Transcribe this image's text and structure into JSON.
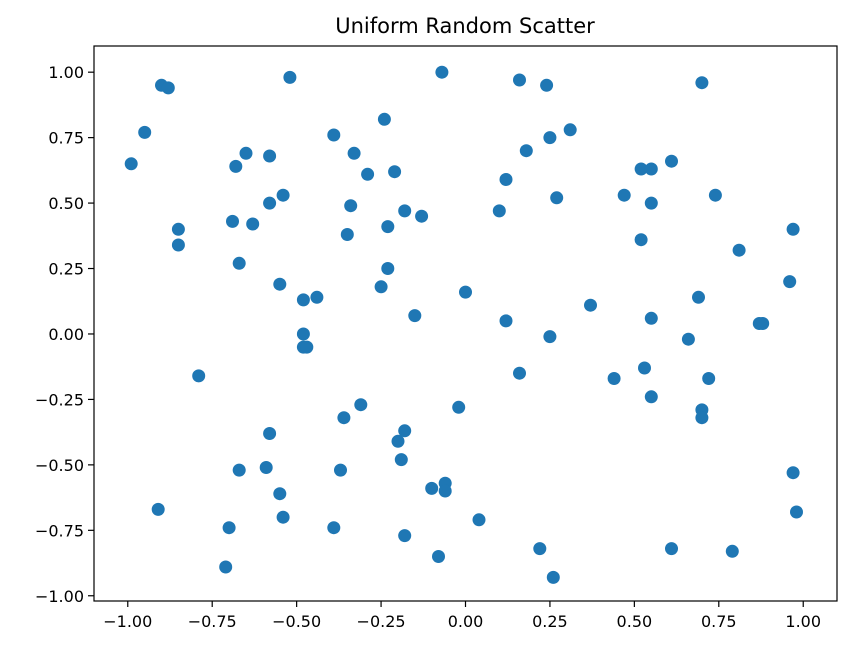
{
  "chart_data": {
    "type": "scatter",
    "title": "Uniform Random Scatter",
    "xlabel": "",
    "ylabel": "",
    "xlim": [
      -1.1,
      1.1
    ],
    "ylim": [
      -1.02,
      1.1
    ],
    "grid": false,
    "marker_color": "#1f77b4",
    "xticks": [
      -1.0,
      -0.75,
      -0.5,
      -0.25,
      0.0,
      0.25,
      0.5,
      0.75,
      1.0
    ],
    "xtick_labels": [
      "−1.00",
      "−0.75",
      "−0.50",
      "−0.25",
      "0.00",
      "0.25",
      "0.50",
      "0.75",
      "1.00"
    ],
    "yticks": [
      1.0,
      0.75,
      0.5,
      0.25,
      0.0,
      -0.25,
      -0.5,
      -0.75,
      -1.0
    ],
    "ytick_labels": [
      "1.00",
      "0.75",
      "0.50",
      "0.25",
      "0.00",
      "−0.25",
      "−0.50",
      "−0.75",
      "−1.00"
    ],
    "points": [
      [
        -0.99,
        0.65
      ],
      [
        -0.95,
        0.77
      ],
      [
        -0.9,
        0.95
      ],
      [
        -0.88,
        0.94
      ],
      [
        -0.85,
        0.4
      ],
      [
        -0.85,
        0.34
      ],
      [
        -0.91,
        -0.67
      ],
      [
        -0.79,
        -0.16
      ],
      [
        -0.71,
        -0.89
      ],
      [
        -0.7,
        -0.74
      ],
      [
        -0.69,
        0.43
      ],
      [
        -0.68,
        0.64
      ],
      [
        -0.67,
        0.27
      ],
      [
        -0.67,
        -0.52
      ],
      [
        -0.65,
        0.69
      ],
      [
        -0.63,
        0.42
      ],
      [
        -0.59,
        -0.51
      ],
      [
        -0.58,
        0.68
      ],
      [
        -0.58,
        0.5
      ],
      [
        -0.58,
        -0.38
      ],
      [
        -0.55,
        0.19
      ],
      [
        -0.55,
        -0.61
      ],
      [
        -0.54,
        0.53
      ],
      [
        -0.54,
        -0.7
      ],
      [
        -0.52,
        0.98
      ],
      [
        -0.48,
        0.13
      ],
      [
        -0.48,
        -0.0
      ],
      [
        -0.48,
        -0.05
      ],
      [
        -0.47,
        -0.05
      ],
      [
        -0.44,
        0.14
      ],
      [
        -0.39,
        0.76
      ],
      [
        -0.39,
        -0.74
      ],
      [
        -0.37,
        -0.52
      ],
      [
        -0.36,
        -0.32
      ],
      [
        -0.35,
        0.38
      ],
      [
        -0.34,
        0.49
      ],
      [
        -0.33,
        0.69
      ],
      [
        -0.31,
        -0.27
      ],
      [
        -0.29,
        0.61
      ],
      [
        -0.25,
        0.18
      ],
      [
        -0.24,
        0.82
      ],
      [
        -0.23,
        0.41
      ],
      [
        -0.23,
        0.25
      ],
      [
        -0.21,
        0.62
      ],
      [
        -0.2,
        -0.41
      ],
      [
        -0.19,
        -0.48
      ],
      [
        -0.18,
        -0.77
      ],
      [
        -0.18,
        -0.37
      ],
      [
        -0.18,
        0.47
      ],
      [
        -0.15,
        0.07
      ],
      [
        -0.13,
        0.45
      ],
      [
        -0.1,
        -0.59
      ],
      [
        -0.08,
        -0.85
      ],
      [
        -0.07,
        1.0
      ],
      [
        -0.06,
        -0.57
      ],
      [
        -0.06,
        -0.6
      ],
      [
        -0.02,
        -0.28
      ],
      [
        0.0,
        0.16
      ],
      [
        0.04,
        -0.71
      ],
      [
        0.1,
        0.47
      ],
      [
        0.12,
        0.59
      ],
      [
        0.12,
        0.05
      ],
      [
        0.16,
        0.97
      ],
      [
        0.16,
        -0.15
      ],
      [
        0.18,
        0.7
      ],
      [
        0.22,
        -0.82
      ],
      [
        0.24,
        0.95
      ],
      [
        0.25,
        0.75
      ],
      [
        0.25,
        -0.01
      ],
      [
        0.26,
        -0.93
      ],
      [
        0.27,
        0.52
      ],
      [
        0.31,
        0.78
      ],
      [
        0.37,
        0.11
      ],
      [
        0.44,
        -0.17
      ],
      [
        0.47,
        0.53
      ],
      [
        0.52,
        0.63
      ],
      [
        0.52,
        0.36
      ],
      [
        0.53,
        -0.13
      ],
      [
        0.55,
        0.63
      ],
      [
        0.55,
        0.5
      ],
      [
        0.55,
        0.06
      ],
      [
        0.55,
        -0.24
      ],
      [
        0.61,
        0.66
      ],
      [
        0.61,
        -0.82
      ],
      [
        0.66,
        -0.02
      ],
      [
        0.69,
        0.14
      ],
      [
        0.7,
        -0.29
      ],
      [
        0.7,
        -0.32
      ],
      [
        0.7,
        0.96
      ],
      [
        0.72,
        -0.17
      ],
      [
        0.74,
        0.53
      ],
      [
        0.79,
        -0.83
      ],
      [
        0.81,
        0.32
      ],
      [
        0.87,
        0.04
      ],
      [
        0.88,
        0.04
      ],
      [
        0.96,
        0.2
      ],
      [
        0.97,
        0.4
      ],
      [
        0.97,
        -0.53
      ],
      [
        0.98,
        -0.68
      ]
    ]
  }
}
